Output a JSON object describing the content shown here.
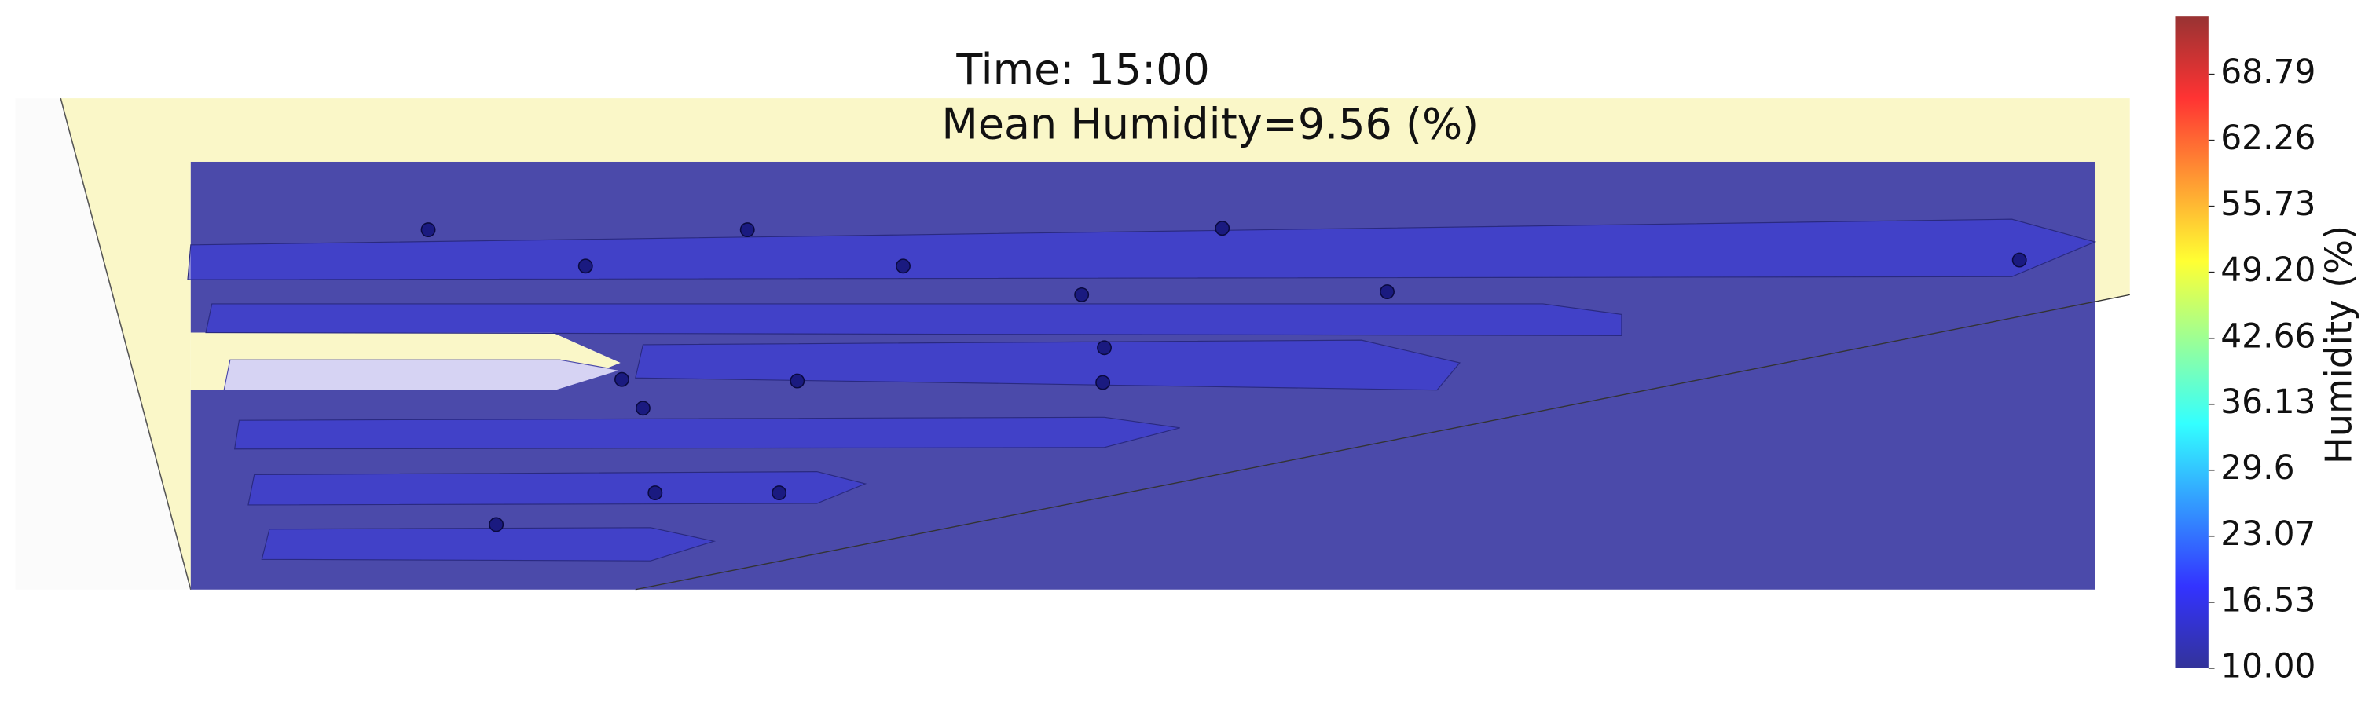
{
  "chart_data": {
    "type": "contour",
    "title": "Time: 15:00",
    "subtitle": "Mean Humidity=9.56 (%)",
    "colorbar_label": "Humidity (%)",
    "colormap": "jet",
    "color": "#4b4aaa",
    "clim": [
      10,
      74.5
    ],
    "cticks": [
      {
        "value": 10,
        "label": "10.00"
      },
      16.53,
      23.07,
      29.6,
      36.13,
      42.66,
      {
        "value": 49.2,
        "label": "49.20"
      },
      55.73,
      62.26,
      68.79
    ]
  }
}
